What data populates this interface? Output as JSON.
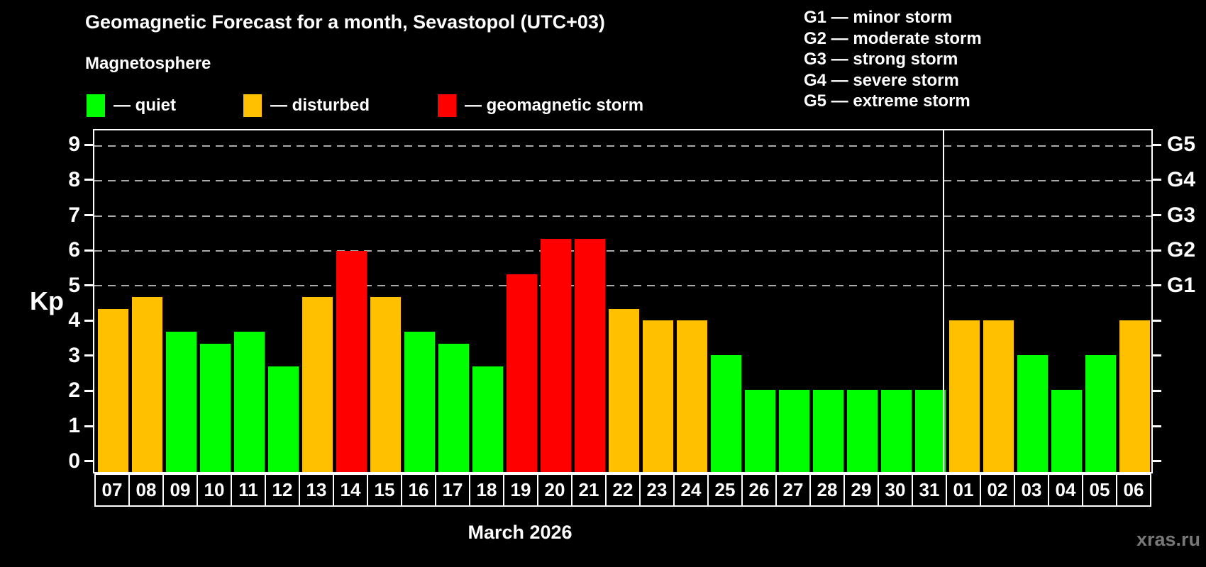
{
  "title": "Geomagnetic Forecast for a month, Sevastopol (UTC+03)",
  "subtitle": "Magnetosphere",
  "condition_legend": [
    {
      "key": "quiet",
      "label": "— quiet",
      "color": "#00ff00"
    },
    {
      "key": "disturbed",
      "label": "— disturbed",
      "color": "#ffc000"
    },
    {
      "key": "storm",
      "label": "— geomagnetic storm",
      "color": "#ff0000"
    }
  ],
  "storm_scale_legend": [
    "G1 — minor storm",
    "G2 — moderate storm",
    "G3 — strong storm",
    "G4 — severe storm",
    "G5 — extreme storm"
  ],
  "watermark": "xras.ru",
  "chart_data": {
    "type": "bar",
    "title": "Geomagnetic Forecast for a month, Sevastopol (UTC+03)",
    "ylabel": "Kp",
    "xlabel": "March 2026",
    "ylim": [
      0,
      9
    ],
    "yticks": [
      0,
      1,
      2,
      3,
      4,
      5,
      6,
      7,
      8,
      9
    ],
    "gridline_levels": [
      5,
      6,
      7,
      8,
      9
    ],
    "grid": "dashed horizontal lines at storm levels G1–G5",
    "legend_position": "top-left",
    "right_axis": [
      {
        "label": "G1",
        "value": 5
      },
      {
        "label": "G2",
        "value": 6
      },
      {
        "label": "G3",
        "value": 7
      },
      {
        "label": "G4",
        "value": 8
      },
      {
        "label": "G5",
        "value": 9
      }
    ],
    "categories": [
      "07",
      "08",
      "09",
      "10",
      "11",
      "12",
      "13",
      "14",
      "15",
      "16",
      "17",
      "18",
      "19",
      "20",
      "21",
      "22",
      "23",
      "24",
      "25",
      "26",
      "27",
      "28",
      "29",
      "30",
      "31",
      "01",
      "02",
      "03",
      "04",
      "05",
      "06"
    ],
    "values": [
      4.33,
      4.67,
      3.67,
      3.33,
      3.67,
      2.67,
      4.67,
      6.0,
      4.67,
      3.67,
      3.33,
      2.67,
      5.33,
      6.33,
      6.33,
      4.33,
      4.0,
      4.0,
      3.0,
      2.0,
      2.0,
      2.0,
      2.0,
      2.0,
      2.0,
      4.0,
      4.0,
      3.0,
      2.0,
      3.0,
      4.0
    ],
    "statuses": [
      "disturbed",
      "disturbed",
      "quiet",
      "quiet",
      "quiet",
      "quiet",
      "disturbed",
      "storm",
      "disturbed",
      "quiet",
      "quiet",
      "quiet",
      "storm",
      "storm",
      "storm",
      "disturbed",
      "disturbed",
      "disturbed",
      "quiet",
      "quiet",
      "quiet",
      "quiet",
      "quiet",
      "quiet",
      "quiet",
      "disturbed",
      "disturbed",
      "quiet",
      "quiet",
      "quiet",
      "disturbed"
    ],
    "month_divider_after_category": "31"
  },
  "colors": {
    "background": "#000000",
    "quiet": "#00ff00",
    "disturbed": "#ffc000",
    "storm": "#ff0000",
    "axis": "#ffffff",
    "gridline": "#aaaaaa",
    "watermark": "#787878"
  }
}
